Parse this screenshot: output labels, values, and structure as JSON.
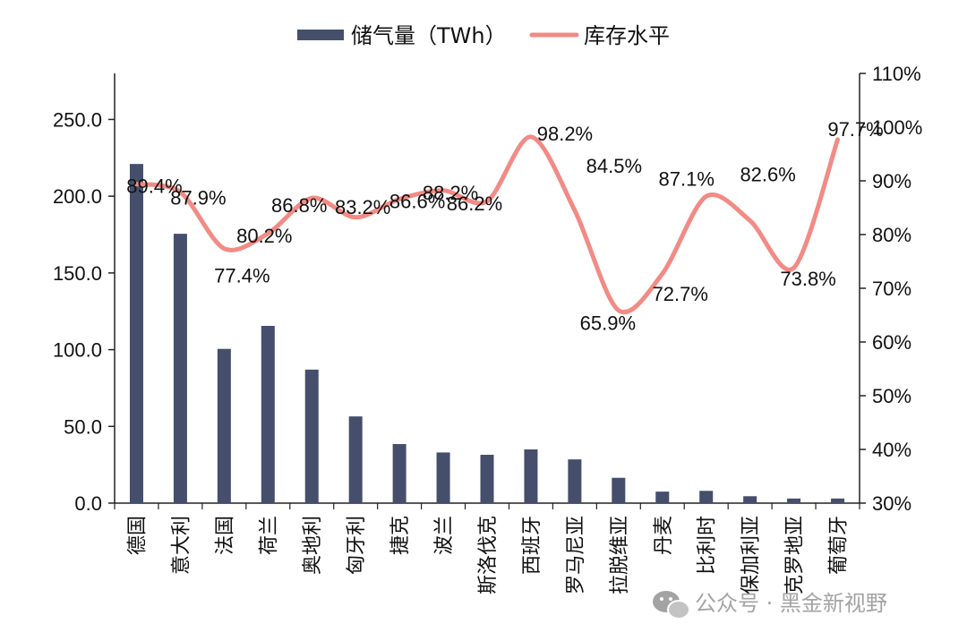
{
  "chart_data": {
    "type": "bar",
    "categories": [
      "德国",
      "意大利",
      "法国",
      "荷兰",
      "奥地利",
      "匈牙利",
      "捷克",
      "波兰",
      "斯洛伐克",
      "西班牙",
      "罗马尼亚",
      "拉脱维亚",
      "丹麦",
      "比利时",
      "保加利亚",
      "克罗地亚",
      "葡萄牙"
    ],
    "series": [
      {
        "name": "储气量（TWh）",
        "type": "bar",
        "axis": "left",
        "color": "#454f6c",
        "values": [
          221.0,
          175.5,
          100.5,
          115.5,
          87.0,
          56.5,
          38.5,
          33.0,
          31.5,
          35.0,
          28.5,
          16.5,
          7.5,
          8.0,
          4.5,
          3.0,
          3.0
        ]
      },
      {
        "name": "库存水平",
        "type": "line",
        "axis": "right",
        "color": "#f28b85",
        "values": [
          89.4,
          87.9,
          77.4,
          80.2,
          86.8,
          83.2,
          86.6,
          88.2,
          86.2,
          98.2,
          84.5,
          65.9,
          72.7,
          87.1,
          82.6,
          73.8,
          97.7
        ],
        "labels": [
          "89.4%",
          "87.9%",
          "77.4%",
          "80.2%",
          "86.8%",
          "83.2%",
          "86.6%",
          "88.2%",
          "86.2%",
          "98.2%",
          "84.5%",
          "65.9%",
          "72.7%",
          "87.1%",
          "82.6%",
          "73.8%",
          "97.7%"
        ]
      }
    ],
    "y_left": {
      "min": 0,
      "max": 280,
      "ticks": [
        0,
        50,
        100,
        150,
        200,
        250
      ],
      "tick_labels": [
        "0.0",
        "50.0",
        "100.0",
        "150.0",
        "200.0",
        "250.0"
      ]
    },
    "y_right": {
      "min": 30,
      "max": 110,
      "ticks": [
        30,
        40,
        50,
        60,
        70,
        80,
        90,
        100,
        110
      ],
      "tick_labels": [
        "30%",
        "40%",
        "50%",
        "60%",
        "70%",
        "80%",
        "90%",
        "100%",
        "110%"
      ]
    },
    "legend_position": "top",
    "grid": false
  },
  "legend": {
    "bar_label": "储气量（TWh）",
    "line_label": "库存水平"
  },
  "watermark": {
    "text": "公众号 · 黑金新视野",
    "icon": "wechat-icon"
  }
}
